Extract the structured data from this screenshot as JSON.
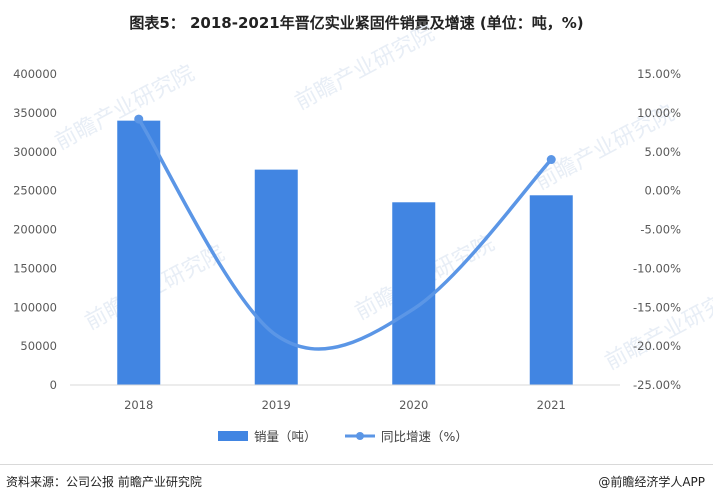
{
  "title": "图表5： 2018-2021年晋亿实业紧固件销量及增速 (单位：吨，%)",
  "source": "资料来源：公司公报 前瞻产业研究院",
  "brand": "@前瞻经济学人APP",
  "watermark": "前瞻产业研究院",
  "colors": {
    "bar": "#4185e2",
    "line": "#5b96e6"
  },
  "chart_data": {
    "type": "bar",
    "categories": [
      "2018",
      "2019",
      "2020",
      "2021"
    ],
    "series": [
      {
        "name": "销量（吨）",
        "type": "bar",
        "axis": "left",
        "values": [
          340000,
          277000,
          235000,
          244000
        ]
      },
      {
        "name": "同比增速（%）",
        "type": "line",
        "axis": "right",
        "values": [
          9.2,
          -18.6,
          -15.2,
          4.0
        ]
      }
    ],
    "y_left": {
      "min": 0,
      "max": 400000,
      "step": 50000,
      "ticks": [
        "0",
        "50000",
        "100000",
        "150000",
        "200000",
        "250000",
        "300000",
        "350000",
        "400000"
      ]
    },
    "y_right": {
      "min": -25,
      "max": 15,
      "step": 5,
      "ticks": [
        "-25.00%",
        "-20.00%",
        "-15.00%",
        "-10.00%",
        "-5.00%",
        "0.00%",
        "5.00%",
        "10.00%",
        "15.00%"
      ]
    },
    "legend_position": "bottom",
    "grid": false
  }
}
